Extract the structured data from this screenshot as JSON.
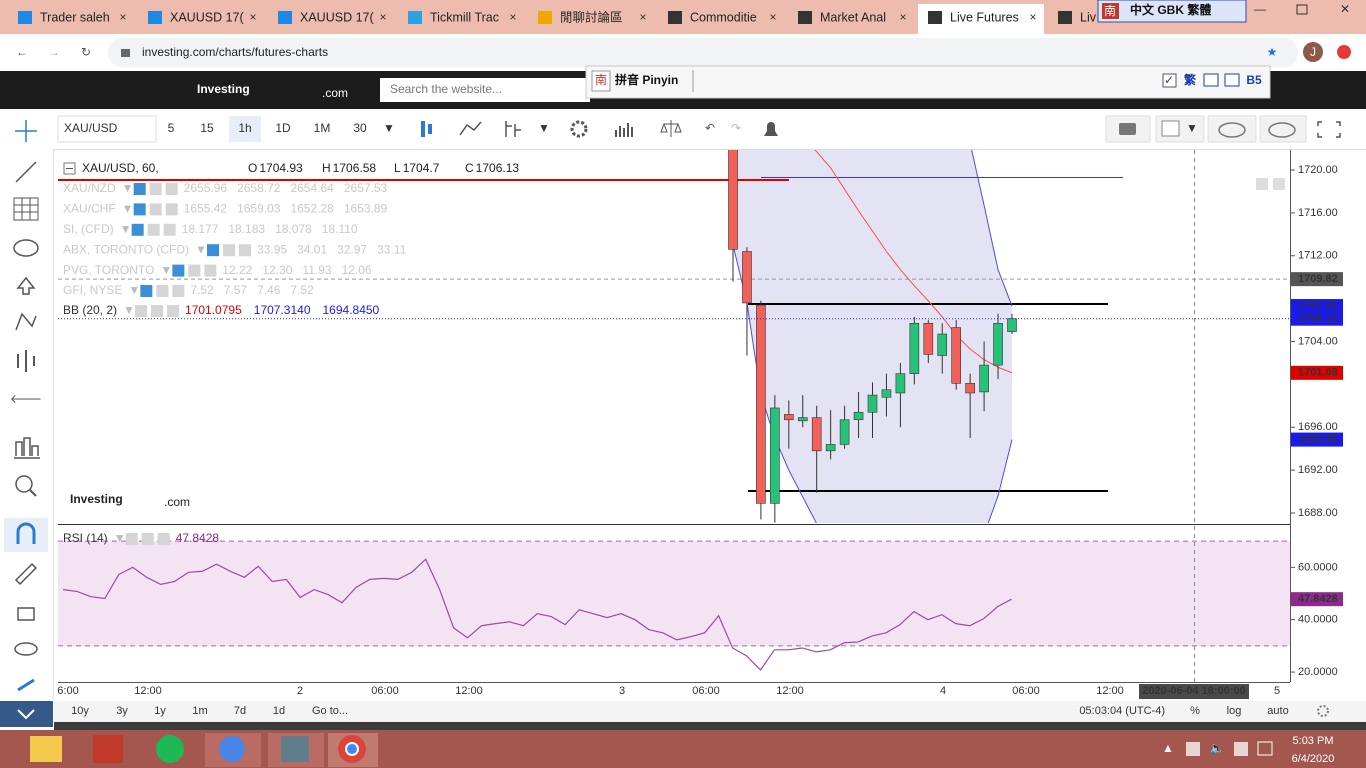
{
  "browser": {
    "tabs": [
      "Trader saleh",
      "XAUUSD 17(",
      "XAUUSD 17(",
      "Tickmill Trac",
      "閒聊討論區",
      "Commoditie",
      "Market Anal",
      "Live Futures",
      "Liv"
    ],
    "active_tab": 7,
    "url": "investing.com/charts/futures-charts",
    "profile": "J"
  },
  "ime": {
    "status": "中文 GBK 繁體",
    "icon": "南",
    "mode": "拼音 Pinyin",
    "traditional": "繁",
    "code": "B5"
  },
  "site": {
    "logo": "Investing",
    "logo_domain": ".com",
    "search_placeholder": "Search the website..."
  },
  "toolbar": {
    "symbol": "XAU/USD",
    "intervals": [
      "5",
      "15",
      "1h",
      "1D",
      "1M",
      "30"
    ],
    "active_interval": 2
  },
  "legend": {
    "main": "XAU/USD, 60,",
    "ohlc_labels": [
      "O",
      "H",
      "L",
      "C"
    ],
    "compare": [
      {
        "name": "XAU/NZD",
        "values": [
          "2655.96",
          "2658.72",
          "2654.64",
          "2657.53"
        ]
      },
      {
        "name": "XAU/CHF",
        "values": [
          "1655.42",
          "1659.03",
          "1652.28",
          "1653.89"
        ]
      },
      {
        "name": "SI, (CFD)",
        "values": [
          "18.177",
          "18.183",
          "18.078",
          "18.110"
        ]
      },
      {
        "name": "ABX, TORONTO (CFD)",
        "values": [
          "33.95",
          "34.01",
          "32.97",
          "33.11"
        ]
      },
      {
        "name": "PVG, TORONTO",
        "values": [
          "12.22",
          "12.30",
          "11.93",
          "12.06"
        ]
      },
      {
        "name": "GFI, NYSE",
        "values": [
          "7.52",
          "7.57",
          "7.46",
          "7.52"
        ]
      }
    ],
    "bb": {
      "name": "BB (20, 2)",
      "values": [
        "1701.0795",
        "1707.3140",
        "1694.8450"
      ]
    },
    "rsi": {
      "name": "RSI (14)"
    }
  },
  "watermark": {
    "text": "Investing",
    "domain": ".com"
  },
  "chart_data": [
    {
      "type": "candlestick",
      "candles": [
        {
          "open": 1722.0,
          "high": 1722.5,
          "low": 1709.6,
          "close": 1712.6
        },
        {
          "open": 1712.4,
          "high": 1712.8,
          "low": 1702.7,
          "close": 1707.6
        },
        {
          "open": 1707.4,
          "high": 1707.8,
          "low": 1687.4,
          "close": 1688.9
        },
        {
          "open": 1688.9,
          "high": 1699.0,
          "low": 1687.1,
          "close": 1697.8
        },
        {
          "open": 1697.2,
          "high": 1698.5,
          "low": 1694.0,
          "close": 1696.7
        },
        {
          "open": 1696.6,
          "high": 1699.0,
          "low": 1696.0,
          "close": 1696.9
        },
        {
          "open": 1696.9,
          "high": 1698.0,
          "low": 1689.9,
          "close": 1693.8
        },
        {
          "open": 1693.8,
          "high": 1697.6,
          "low": 1693.0,
          "close": 1694.4
        },
        {
          "open": 1694.4,
          "high": 1698.0,
          "low": 1694.0,
          "close": 1696.7
        },
        {
          "open": 1696.7,
          "high": 1699.3,
          "low": 1695.0,
          "close": 1697.4
        },
        {
          "open": 1697.4,
          "high": 1700.2,
          "low": 1695.0,
          "close": 1699.0
        },
        {
          "open": 1698.8,
          "high": 1701.0,
          "low": 1697.0,
          "close": 1699.5
        },
        {
          "open": 1699.2,
          "high": 1702.0,
          "low": 1696.0,
          "close": 1701.0
        },
        {
          "open": 1701.0,
          "high": 1706.3,
          "low": 1700.0,
          "close": 1705.7
        },
        {
          "open": 1705.7,
          "high": 1706.0,
          "low": 1702.0,
          "close": 1702.8
        },
        {
          "open": 1702.7,
          "high": 1705.7,
          "low": 1701.0,
          "close": 1704.7
        },
        {
          "open": 1705.3,
          "high": 1706.0,
          "low": 1699.5,
          "close": 1700.1
        },
        {
          "open": 1700.1,
          "high": 1701.0,
          "low": 1695.0,
          "close": 1699.2
        },
        {
          "open": 1699.3,
          "high": 1704.0,
          "low": 1697.5,
          "close": 1701.8
        },
        {
          "open": 1701.8,
          "high": 1706.6,
          "low": 1700.5,
          "close": 1705.7
        },
        {
          "open": 1704.93,
          "high": 1706.58,
          "low": 1704.7,
          "close": 1706.13
        }
      ],
      "bb": {
        "upper": [
          1726,
          1726,
          1726,
          1726,
          1726,
          1726,
          1726,
          1726,
          1726,
          1726,
          1726,
          1726,
          1726,
          1726,
          1726,
          1725,
          1724,
          1722.5,
          1716.7,
          1710.7,
          1707.31
        ],
        "middle": [
          1731,
          1729,
          1727,
          1725.5,
          1724,
          1723,
          1721.7,
          1720.2,
          1718.2,
          1716.2,
          1714.3,
          1712.4,
          1710.7,
          1709.2,
          1707.8,
          1706.3,
          1704.6,
          1703.3,
          1702.3,
          1701.6,
          1701.08
        ],
        "lower": [
          1713,
          1707.6,
          1699,
          1695,
          1692,
          1689.5,
          1687,
          1686,
          1686,
          1686,
          1686,
          1686,
          1686,
          1686,
          1686,
          1686,
          1686,
          1686,
          1686,
          1689.6,
          1694.85
        ],
        "upper_color": "#4b4bf0",
        "middle_color": "#f05050",
        "fill": "#dcdcf0"
      },
      "up_color": "#27c27a",
      "down_color": "#f2605a",
      "ylim": [
        1687.16,
        1721.87
      ],
      "yticks": [
        {
          "value": 1720,
          "label": "1720.00"
        },
        {
          "value": 1716,
          "label": "1716.00"
        },
        {
          "value": 1712,
          "label": "1712.00"
        },
        {
          "value": 1704,
          "label": "1704.00"
        },
        {
          "value": 1696,
          "label": "1696.00"
        },
        {
          "value": 1692,
          "label": "1692.00"
        },
        {
          "value": 1688,
          "label": "1688.00"
        }
      ],
      "price_markers": [
        {
          "value": 1709.82,
          "color": "#555555"
        }
      ],
      "drawings": [
        {
          "value": 1719.07,
          "color": "#e00000"
        },
        {
          "value": 1719.3,
          "color": "#3535f0"
        },
        {
          "value": 1707.5,
          "color": "#000000"
        },
        {
          "value": 1690.05,
          "color": "#000000"
        }
      ]
    },
    {
      "type": "line",
      "values": [
        51.5,
        50.8,
        48.8,
        48.1,
        57.3,
        60,
        56.2,
        53.5,
        54.6,
        58.1,
        58.5,
        61.2,
        58.5,
        56.2,
        60.4,
        54.6,
        55.4,
        48.5,
        51.5,
        49.6,
        46.5,
        52.3,
        55.4,
        55.8,
        55.4,
        58.1,
        63.1,
        51.5,
        36.9,
        33.1,
        37.7,
        38.5,
        39.2,
        37.7,
        42.3,
        41.2,
        38.1,
        43.8,
        42.3,
        40.8,
        42.3,
        40,
        36.2,
        35,
        32.3,
        33.5,
        35,
        41.5,
        29.2,
        26.2,
        20.8,
        28.5,
        28.5,
        29.2,
        27.7,
        28.5,
        31.2,
        31.5,
        33.8,
        35,
        38.1,
        43.1,
        40,
        41.9,
        38.5,
        37.7,
        40.4,
        45,
        47.8428
      ],
      "color": "#9c4aa8",
      "band_fill": "#f3e3f3",
      "bands": [
        30,
        70
      ],
      "ylim": [
        16.2,
        75.8
      ],
      "yticks": [
        {
          "value": 20,
          "label": "20.0000"
        },
        {
          "value": 40,
          "label": "40.0000"
        },
        {
          "value": 60,
          "label": "60.0000"
        }
      ]
    }
  ],
  "time_axis": {
    "labels": [
      "6:00",
      "12:00",
      "2",
      "06:00",
      "12:00",
      "3",
      "06:00",
      "12:00",
      "4",
      "06:00",
      "12:00",
      "5"
    ],
    "crosshair": "2020-06-04 18:00:00"
  },
  "bottom_bar": {
    "ranges": [
      "10y",
      "3y",
      "1y",
      "1m",
      "7d",
      "1d"
    ],
    "goto": "Go to...",
    "clock": "05:03:04 (UTC-4)",
    "options": [
      "%",
      "log",
      "auto"
    ]
  },
  "taskbar": {
    "time": "5:03 PM",
    "date": "6/4/2020"
  }
}
